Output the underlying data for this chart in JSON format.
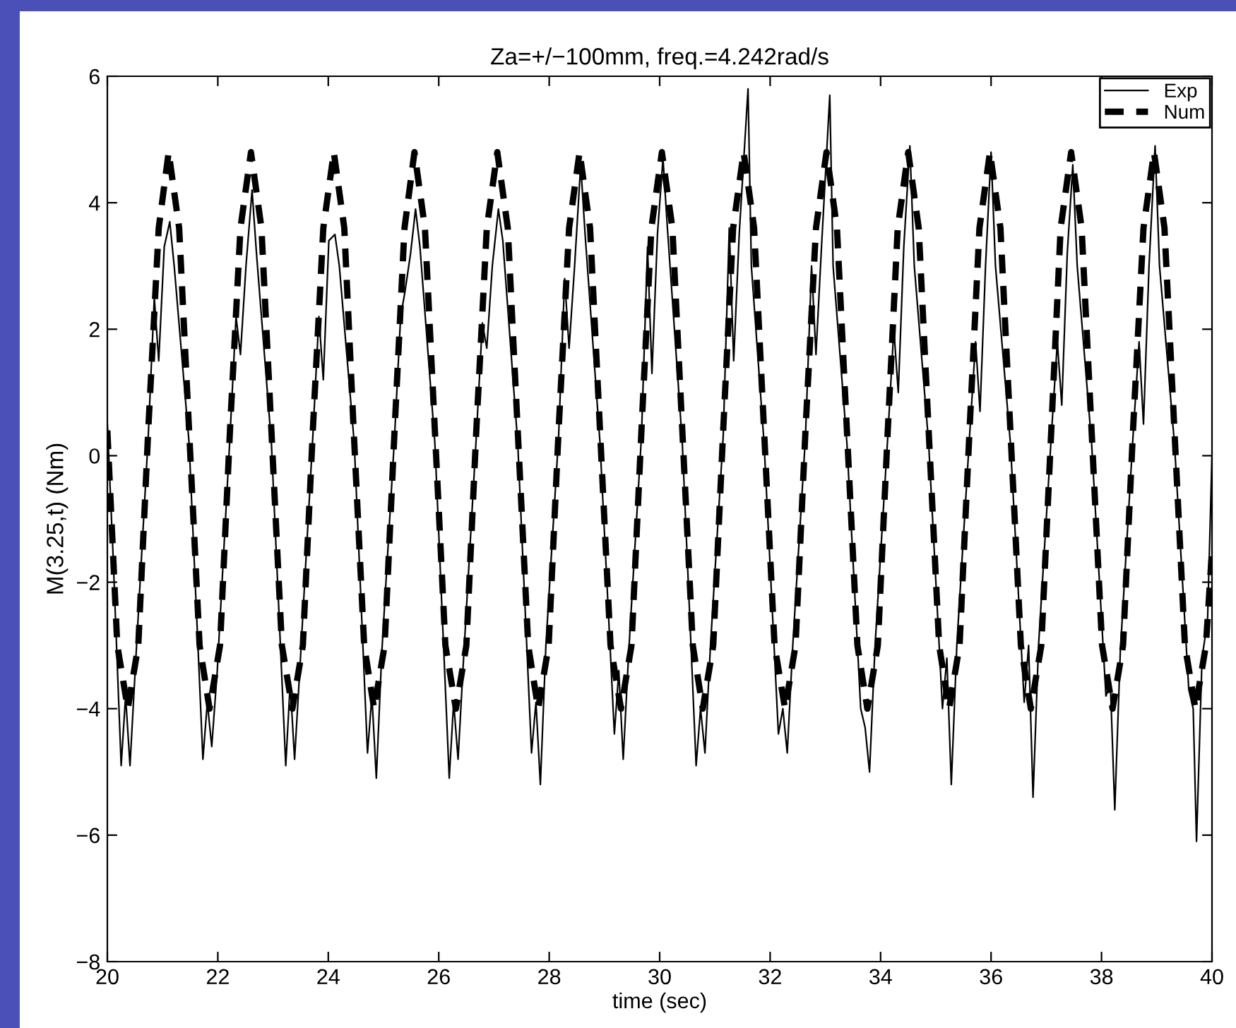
{
  "chart_data": {
    "type": "line",
    "title": "Za=+/−100mm, freq.=4.242rad/s",
    "xlabel": "time (sec)",
    "ylabel": "M(3.25,t) (Nm)",
    "xlim": [
      20,
      40
    ],
    "xticks": [
      20,
      22,
      24,
      26,
      28,
      30,
      32,
      34,
      36,
      38,
      40
    ],
    "ylim": [
      -8,
      6
    ],
    "yticks": [
      -8,
      -6,
      -4,
      -2,
      0,
      2,
      4,
      6
    ],
    "grid": false,
    "legend": "top right",
    "marker": "none",
    "series": [
      {
        "name": "Exp",
        "color": "#000000",
        "line_style": "solid",
        "x": [
          20.0,
          20.1,
          20.25,
          20.33,
          20.41,
          20.51,
          20.74,
          20.85,
          20.93,
          21.03,
          21.13,
          21.21,
          21.48,
          21.73,
          21.81,
          21.89,
          21.99,
          22.22,
          22.33,
          22.41,
          22.51,
          22.62,
          22.7,
          22.97,
          23.23,
          23.31,
          23.39,
          23.49,
          23.72,
          23.83,
          23.91,
          24.01,
          24.12,
          24.2,
          24.47,
          24.71,
          24.79,
          24.87,
          24.97,
          25.2,
          25.31,
          25.39,
          25.49,
          25.58,
          25.66,
          25.93,
          26.19,
          26.27,
          26.35,
          26.45,
          26.68,
          26.79,
          26.87,
          26.97,
          27.08,
          27.16,
          27.43,
          27.68,
          27.76,
          27.84,
          27.94,
          28.17,
          28.28,
          28.36,
          28.46,
          28.57,
          28.65,
          28.92,
          29.18,
          29.26,
          29.34,
          29.44,
          29.67,
          29.78,
          29.86,
          29.96,
          30.06,
          30.14,
          30.41,
          30.66,
          30.74,
          30.82,
          30.92,
          31.15,
          31.26,
          31.34,
          31.44,
          31.6,
          31.66,
          31.89,
          32.15,
          32.23,
          32.31,
          32.41,
          32.64,
          32.75,
          32.83,
          32.93,
          33.08,
          33.14,
          33.39,
          33.64,
          33.72,
          33.8,
          33.9,
          34.13,
          34.24,
          34.32,
          34.42,
          34.53,
          34.61,
          34.87,
          35.12,
          35.2,
          35.28,
          35.38,
          35.61,
          35.72,
          35.8,
          35.9,
          36.0,
          36.08,
          36.35,
          36.6,
          36.68,
          36.76,
          36.86,
          37.09,
          37.2,
          37.28,
          37.38,
          37.48,
          37.56,
          37.82,
          38.08,
          38.16,
          38.24,
          38.34,
          38.57,
          38.68,
          38.76,
          38.86,
          38.97,
          39.05,
          39.32,
          39.58,
          39.66,
          39.72,
          39.82,
          39.92,
          40.0
        ],
        "values": [
          0.5,
          -1.5,
          -4.9,
          -3.8,
          -4.9,
          -3.3,
          0.3,
          2.5,
          1.5,
          3.3,
          3.7,
          3.0,
          0.2,
          -4.8,
          -3.9,
          -4.6,
          -3.4,
          0.3,
          2.2,
          1.6,
          3.0,
          4.2,
          3.2,
          0.2,
          -4.9,
          -3.6,
          -4.8,
          -3.3,
          0.3,
          2.2,
          1.2,
          3.4,
          3.5,
          3.0,
          0.2,
          -4.7,
          -3.8,
          -5.1,
          -3.1,
          0.3,
          2.2,
          2.6,
          3.2,
          3.9,
          3.3,
          0.2,
          -5.1,
          -3.9,
          -4.8,
          -3.2,
          0.3,
          2.1,
          1.7,
          3.0,
          3.9,
          3.4,
          0.2,
          -4.7,
          -3.9,
          -5.2,
          -3.0,
          0.3,
          2.8,
          1.7,
          3.0,
          4.6,
          3.5,
          0.2,
          -4.4,
          -3.4,
          -4.8,
          -3.1,
          0.3,
          3.3,
          1.3,
          3.5,
          4.7,
          3.6,
          0.2,
          -4.9,
          -4.0,
          -4.7,
          -3.0,
          0.3,
          3.6,
          1.5,
          3.5,
          5.8,
          3.0,
          0.2,
          -4.4,
          -4.0,
          -4.7,
          -3.0,
          0.3,
          3.0,
          1.6,
          3.3,
          5.7,
          3.0,
          0.2,
          -4.0,
          -4.3,
          -5.0,
          -3.0,
          0.3,
          2.0,
          1.0,
          3.3,
          4.9,
          3.0,
          0.2,
          -4.0,
          -3.2,
          -5.2,
          -3.0,
          0.3,
          1.8,
          0.7,
          3.0,
          4.8,
          3.0,
          0.2,
          -3.9,
          -3.0,
          -5.4,
          -3.0,
          0.3,
          1.8,
          0.8,
          3.2,
          4.6,
          3.0,
          0.2,
          -3.8,
          -3.6,
          -5.6,
          -3.1,
          0.3,
          1.8,
          0.5,
          3.0,
          4.9,
          3.0,
          0.2,
          -3.7,
          -4.0,
          -6.1,
          -3.2,
          -2.6,
          0.0
        ]
      },
      {
        "name": "Num",
        "color": "#000000",
        "line_style": "dashed",
        "x": [
          20.0,
          20.18,
          20.37,
          20.56,
          20.74,
          20.93,
          21.11,
          21.3,
          21.48,
          21.67,
          21.85,
          22.04,
          22.22,
          22.41,
          22.6,
          22.79,
          22.97,
          23.16,
          23.35,
          23.54,
          23.72,
          23.91,
          24.1,
          24.29,
          24.46,
          24.65,
          24.83,
          25.02,
          25.2,
          25.38,
          25.56,
          25.75,
          25.93,
          26.12,
          26.31,
          26.5,
          26.68,
          26.87,
          27.06,
          27.25,
          27.43,
          27.62,
          27.8,
          27.99,
          28.17,
          28.36,
          28.55,
          28.74,
          28.92,
          29.11,
          29.3,
          29.49,
          29.67,
          29.85,
          30.04,
          30.23,
          30.41,
          30.6,
          30.78,
          30.97,
          31.15,
          31.33,
          31.52,
          31.71,
          31.89,
          32.08,
          32.27,
          32.46,
          32.64,
          32.83,
          33.02,
          33.21,
          33.39,
          33.58,
          33.76,
          33.95,
          34.13,
          34.31,
          34.5,
          34.69,
          34.87,
          35.06,
          35.24,
          35.43,
          35.61,
          35.79,
          35.98,
          36.17,
          36.35,
          36.54,
          36.72,
          36.91,
          37.09,
          37.26,
          37.45,
          37.64,
          37.82,
          38.01,
          38.2,
          38.39,
          38.57,
          38.76,
          38.95,
          39.14,
          39.32,
          39.51,
          39.7,
          39.89,
          40.0
        ],
        "values": [
          0.4,
          -3.0,
          -4.0,
          -3.0,
          0.4,
          3.6,
          4.8,
          3.6,
          0.4,
          -3.0,
          -4.0,
          -3.0,
          0.4,
          3.6,
          4.8,
          3.6,
          0.4,
          -3.0,
          -4.0,
          -3.0,
          0.4,
          3.6,
          4.8,
          3.6,
          0.4,
          -3.0,
          -4.0,
          -3.0,
          0.4,
          3.6,
          4.8,
          3.6,
          0.4,
          -3.0,
          -4.0,
          -3.0,
          0.4,
          3.6,
          4.8,
          3.6,
          0.4,
          -3.0,
          -4.0,
          -3.0,
          0.4,
          3.6,
          4.8,
          3.6,
          0.4,
          -3.0,
          -4.0,
          -3.0,
          0.4,
          3.6,
          4.8,
          3.6,
          0.4,
          -3.0,
          -4.0,
          -3.0,
          0.4,
          3.6,
          4.8,
          3.6,
          0.4,
          -3.0,
          -4.0,
          -3.0,
          0.4,
          3.6,
          4.8,
          3.6,
          0.4,
          -3.0,
          -4.0,
          -3.0,
          0.4,
          3.6,
          4.8,
          3.6,
          0.4,
          -3.0,
          -4.0,
          -3.0,
          0.4,
          3.6,
          4.8,
          3.6,
          0.4,
          -3.0,
          -4.0,
          -3.0,
          0.4,
          3.6,
          4.8,
          3.6,
          0.4,
          -3.0,
          -4.0,
          -3.0,
          0.4,
          3.6,
          4.8,
          3.6,
          0.4,
          -3.0,
          -4.0,
          -3.0,
          -1.5
        ]
      }
    ]
  }
}
